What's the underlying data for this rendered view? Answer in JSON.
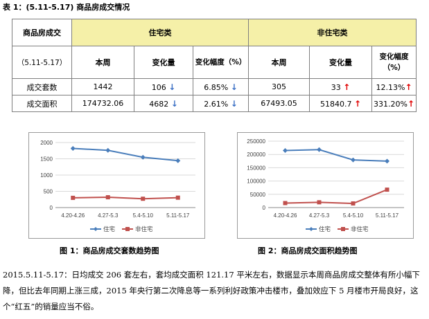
{
  "doc": {
    "title": "表 1：(5.11-5.17) 商品房成交情况"
  },
  "table": {
    "corner_top": "商品房成交",
    "corner_bottom": "（5.11-5.17）",
    "group_residential": "住宅类",
    "group_nonresidential": "非住宅类",
    "col_week": "本周",
    "col_change": "变化量",
    "col_rate": "变化幅度（%）",
    "col_rate_nr": "变化幅度（%）",
    "rows": [
      {
        "label": "成交套数",
        "r_week": "1442",
        "r_change": "106",
        "r_change_dir": "↓",
        "r_rate": "6.85%",
        "r_rate_dir": "↓",
        "n_week": "305",
        "n_change": "33",
        "n_change_dir": "↑",
        "n_rate": "12.13%",
        "n_rate_dir": "↑"
      },
      {
        "label": "成交面积",
        "r_week": "174732.06",
        "r_change": "4682",
        "r_change_dir": "↓",
        "r_rate": "2.61%",
        "r_rate_dir": "↓",
        "n_week": "67493.05",
        "n_change": "51840.7",
        "n_change_dir": "↑",
        "n_rate": "331.20%",
        "n_rate_dir": "↑"
      }
    ]
  },
  "colors": {
    "residential": "#4a7ebb",
    "nonresidential": "#c0504d",
    "header_bg": "#f5f0a8"
  },
  "chart_data": [
    {
      "type": "line",
      "categories": [
        "4.20-4.26",
        "4.27-5.3",
        "5.4-5.10",
        "5.11-5.17"
      ],
      "series": [
        {
          "name": "住宅",
          "values": [
            1820,
            1760,
            1548,
            1442
          ]
        },
        {
          "name": "非住宅",
          "values": [
            300,
            318,
            272,
            305
          ]
        }
      ],
      "ylim": [
        0,
        2000
      ],
      "yticks": [
        "0",
        "500",
        "1000",
        "1500",
        "2000"
      ],
      "grid": true,
      "legend": "bottom",
      "caption": "图 1：商品房成交套数趋势图"
    },
    {
      "type": "line",
      "categories": [
        "4.20-4.26",
        "4.27-5.3",
        "5.4-5.10",
        "5.11-5.17"
      ],
      "series": [
        {
          "name": "住宅",
          "values": [
            215000,
            218000,
            179414,
            174732
          ]
        },
        {
          "name": "非住宅",
          "values": [
            17000,
            20000,
            15652,
            67493
          ]
        }
      ],
      "ylim": [
        0,
        250000
      ],
      "yticks": [
        "0",
        "50000",
        "100000",
        "150000",
        "200000",
        "250000"
      ],
      "grid": true,
      "legend": "bottom",
      "caption": "图 2：商品房成交面积趋势图"
    }
  ],
  "paragraph": {
    "text": "2015.5.11-5.17：日均成交 206 套左右，套均成交面积 121.17 平米左右，数据显示本周商品房成交整体有所小幅下降，但比去年同期上涨三成，2015 年央行第二次降息等一系列利好政策冲击楼市，叠加效应下 5 月楼市开局良好，这个“红五”的销量应当不俗。"
  }
}
